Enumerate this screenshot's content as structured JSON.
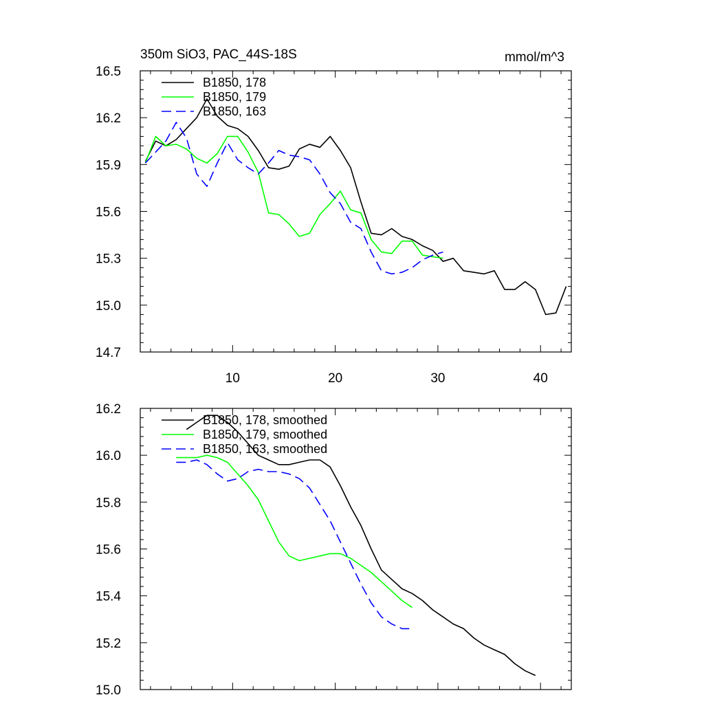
{
  "chart_data": [
    {
      "type": "line",
      "title": "350m SiO3, PAC_44S-18S",
      "units": "mmol/m^3",
      "xlim": [
        1,
        43
      ],
      "ylim": [
        14.7,
        16.5
      ],
      "xticks": [
        10,
        20,
        30,
        40
      ],
      "xtick_labels": [
        "10",
        "20",
        "30",
        "40"
      ],
      "yticks": [
        14.7,
        15.0,
        15.3,
        15.6,
        15.9,
        16.2,
        16.5
      ],
      "ytick_labels": [
        "14.7",
        "15.0",
        "15.3",
        "15.6",
        "15.9",
        "16.2",
        "16.5"
      ],
      "legend": "top-left",
      "series": [
        {
          "name": "B1850, 178",
          "color": "#000000",
          "dash": "solid",
          "x": [
            1.5,
            2.5,
            3.5,
            4.5,
            5.5,
            6.5,
            7.5,
            8.5,
            9.5,
            10.5,
            11.5,
            12.5,
            13.5,
            14.5,
            15.5,
            16.5,
            17.5,
            18.5,
            19.5,
            20.5,
            21.5,
            22.5,
            23.5,
            24.5,
            25.5,
            26.5,
            27.5,
            28.5,
            29.5,
            30.5,
            31.5,
            32.5,
            33.5,
            34.5,
            35.5,
            36.5,
            37.5,
            38.5,
            39.5,
            40.5,
            41.5,
            42.5
          ],
          "values": [
            15.92,
            16.05,
            16.02,
            16.06,
            16.13,
            16.2,
            16.32,
            16.21,
            16.15,
            16.13,
            16.08,
            15.99,
            15.88,
            15.87,
            15.89,
            16.0,
            16.03,
            16.01,
            16.08,
            15.99,
            15.88,
            15.66,
            15.46,
            15.45,
            15.49,
            15.44,
            15.42,
            15.38,
            15.35,
            15.28,
            15.3,
            15.22,
            15.21,
            15.2,
            15.22,
            15.1,
            15.1,
            15.15,
            15.1,
            14.94,
            14.95,
            15.12
          ]
        },
        {
          "name": "B1850, 179",
          "color": "#00ff00",
          "dash": "solid",
          "x": [
            1.5,
            2.5,
            3.5,
            4.5,
            5.5,
            6.5,
            7.5,
            8.5,
            9.5,
            10.5,
            11.5,
            12.5,
            13.5,
            14.5,
            15.5,
            16.5,
            17.5,
            18.5,
            19.5,
            20.5,
            21.5,
            22.5,
            23.5,
            24.5,
            25.5,
            26.5,
            27.5,
            28.5,
            29.5,
            30.5
          ],
          "values": [
            15.91,
            16.08,
            16.02,
            16.03,
            16.0,
            15.94,
            15.91,
            15.97,
            16.08,
            16.08,
            15.98,
            15.85,
            15.59,
            15.58,
            15.52,
            15.44,
            15.46,
            15.58,
            15.65,
            15.73,
            15.61,
            15.59,
            15.42,
            15.34,
            15.33,
            15.41,
            15.41,
            15.32,
            15.31,
            15.3
          ]
        },
        {
          "name": "B1850, 163",
          "color": "#0000ff",
          "dash": "dashed",
          "x": [
            1.5,
            2.5,
            3.5,
            4.5,
            5.5,
            6.5,
            7.5,
            8.5,
            9.5,
            10.5,
            11.5,
            12.5,
            13.5,
            14.5,
            15.5,
            16.5,
            17.5,
            18.5,
            19.5,
            20.5,
            21.5,
            22.5,
            23.5,
            24.5,
            25.5,
            26.5,
            27.5,
            28.5,
            29.5,
            30.5
          ],
          "values": [
            15.91,
            15.98,
            16.05,
            16.17,
            16.07,
            15.84,
            15.76,
            15.91,
            16.04,
            15.93,
            15.88,
            15.84,
            15.91,
            15.99,
            15.96,
            15.95,
            15.93,
            15.84,
            15.72,
            15.65,
            15.53,
            15.49,
            15.34,
            15.22,
            15.2,
            15.21,
            15.24,
            15.29,
            15.32,
            15.34
          ]
        }
      ]
    },
    {
      "type": "line",
      "title": "",
      "xlim": [
        1,
        43
      ],
      "ylim": [
        15.0,
        16.2
      ],
      "xticks": [
        10,
        20,
        30,
        40
      ],
      "xtick_labels": [
        "",
        "",
        "",
        ""
      ],
      "yticks": [
        15.0,
        15.2,
        15.4,
        15.6,
        15.8,
        16.0,
        16.2
      ],
      "ytick_labels": [
        "15.0",
        "15.2",
        "15.4",
        "15.6",
        "15.8",
        "16.0",
        "16.2"
      ],
      "legend": "top-left",
      "series": [
        {
          "name": "B1850, 178, smoothed",
          "color": "#000000",
          "dash": "solid",
          "x": [
            5.5,
            6.5,
            7.5,
            8.5,
            9.5,
            10.5,
            11.5,
            12.5,
            13.5,
            14.5,
            15.5,
            16.5,
            17.5,
            18.5,
            19.5,
            20.5,
            21.5,
            22.5,
            23.5,
            24.5,
            25.5,
            26.5,
            27.5,
            28.5,
            29.5,
            30.5,
            31.5,
            32.5,
            33.5,
            34.5,
            35.5,
            36.5,
            37.5,
            38.5,
            39.5
          ],
          "values": [
            16.11,
            16.14,
            16.17,
            16.17,
            16.14,
            16.1,
            16.05,
            16.0,
            15.98,
            15.96,
            15.96,
            15.97,
            15.98,
            15.98,
            15.95,
            15.87,
            15.78,
            15.7,
            15.6,
            15.51,
            15.47,
            15.43,
            15.41,
            15.38,
            15.34,
            15.31,
            15.28,
            15.26,
            15.22,
            15.19,
            15.17,
            15.15,
            15.11,
            15.08,
            15.06
          ]
        },
        {
          "name": "B1850, 179, smoothed",
          "color": "#00ff00",
          "dash": "solid",
          "x": [
            4.5,
            5.5,
            6.5,
            7.5,
            8.5,
            9.5,
            10.5,
            11.5,
            12.5,
            13.5,
            14.5,
            15.5,
            16.5,
            17.5,
            18.5,
            19.5,
            20.5,
            21.5,
            22.5,
            23.5,
            24.5,
            25.5,
            26.5,
            27.5
          ],
          "values": [
            15.99,
            15.99,
            15.99,
            16.0,
            15.99,
            15.97,
            15.92,
            15.87,
            15.81,
            15.72,
            15.63,
            15.57,
            15.55,
            15.56,
            15.57,
            15.58,
            15.58,
            15.56,
            15.53,
            15.5,
            15.46,
            15.42,
            15.38,
            15.35
          ]
        },
        {
          "name": "B1850, 163, smoothed",
          "color": "#0000ff",
          "dash": "dashed",
          "x": [
            4.5,
            5.5,
            6.5,
            7.5,
            8.5,
            9.5,
            10.5,
            11.5,
            12.5,
            13.5,
            14.5,
            15.5,
            16.5,
            17.5,
            18.5,
            19.5,
            20.5,
            21.5,
            22.5,
            23.5,
            24.5,
            25.5,
            26.5,
            27.5
          ],
          "values": [
            15.97,
            15.97,
            15.98,
            15.96,
            15.92,
            15.89,
            15.9,
            15.93,
            15.94,
            15.93,
            15.93,
            15.92,
            15.9,
            15.86,
            15.79,
            15.72,
            15.63,
            15.54,
            15.45,
            15.37,
            15.31,
            15.28,
            15.26,
            15.26
          ]
        }
      ]
    }
  ]
}
